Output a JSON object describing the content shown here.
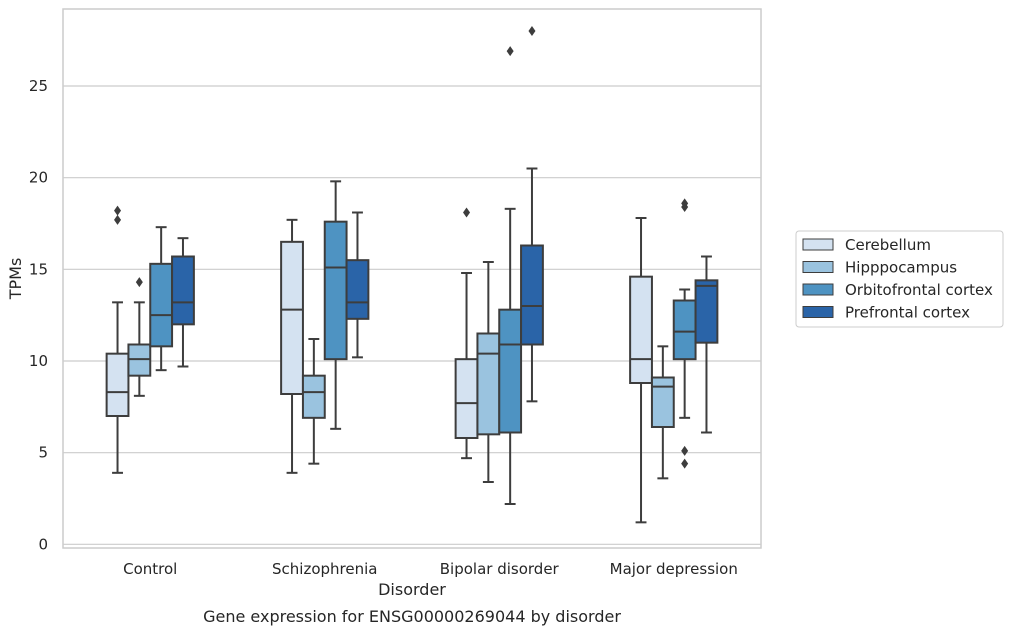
{
  "chart_data": {
    "type": "box",
    "title": "Gene expression for ENSG00000269044 by disorder",
    "xlabel": "Disorder",
    "ylabel": "TPMs",
    "ylim": [
      -0.2,
      29.2
    ],
    "yticks": [
      0,
      5,
      10,
      15,
      20,
      25
    ],
    "grid": "horizontal",
    "legend_placement": "right",
    "categories": [
      "Control",
      "Schizophrenia",
      "Bipolar disorder",
      "Major depression"
    ],
    "series": [
      {
        "name": "Cerebellum",
        "color": "#d4e2f1",
        "boxes": [
          {
            "whisker_low": 3.9,
            "q1": 7.0,
            "median": 8.3,
            "q3": 10.4,
            "whisker_high": 13.2,
            "outliers": [
              17.7,
              18.2
            ]
          },
          {
            "whisker_low": 3.9,
            "q1": 8.2,
            "median": 12.8,
            "q3": 16.5,
            "whisker_high": 17.7,
            "outliers": []
          },
          {
            "whisker_low": 4.7,
            "q1": 5.8,
            "median": 7.7,
            "q3": 10.1,
            "whisker_high": 14.8,
            "outliers": [
              18.1
            ]
          },
          {
            "whisker_low": 1.2,
            "q1": 8.8,
            "median": 10.1,
            "q3": 14.6,
            "whisker_high": 17.8,
            "outliers": []
          }
        ]
      },
      {
        "name": "Hipppocampus",
        "color": "#9ac3df",
        "boxes": [
          {
            "whisker_low": 8.1,
            "q1": 9.2,
            "median": 10.1,
            "q3": 10.9,
            "whisker_high": 13.2,
            "outliers": [
              14.3
            ]
          },
          {
            "whisker_low": 4.4,
            "q1": 6.9,
            "median": 8.3,
            "q3": 9.2,
            "whisker_high": 11.2,
            "outliers": []
          },
          {
            "whisker_low": 3.4,
            "q1": 6.0,
            "median": 10.4,
            "q3": 11.5,
            "whisker_high": 15.4,
            "outliers": []
          },
          {
            "whisker_low": 3.6,
            "q1": 6.4,
            "median": 8.6,
            "q3": 9.1,
            "whisker_high": 10.8,
            "outliers": []
          }
        ]
      },
      {
        "name": "Orbitofrontal cortex",
        "color": "#4e93c2",
        "boxes": [
          {
            "whisker_low": 9.5,
            "q1": 10.8,
            "median": 12.5,
            "q3": 15.3,
            "whisker_high": 17.3,
            "outliers": []
          },
          {
            "whisker_low": 6.3,
            "q1": 10.1,
            "median": 15.1,
            "q3": 17.6,
            "whisker_high": 19.8,
            "outliers": []
          },
          {
            "whisker_low": 2.2,
            "q1": 6.1,
            "median": 10.9,
            "q3": 12.8,
            "whisker_high": 18.3,
            "outliers": [
              26.9
            ]
          },
          {
            "whisker_low": 6.9,
            "q1": 10.1,
            "median": 11.6,
            "q3": 13.3,
            "whisker_high": 13.9,
            "outliers": [
              4.4,
              5.1,
              18.4,
              18.6
            ]
          }
        ]
      },
      {
        "name": "Prefrontal cortex",
        "color": "#2a64a8",
        "boxes": [
          {
            "whisker_low": 9.7,
            "q1": 12.0,
            "median": 13.2,
            "q3": 15.7,
            "whisker_high": 16.7,
            "outliers": []
          },
          {
            "whisker_low": 10.2,
            "q1": 12.3,
            "median": 13.2,
            "q3": 15.5,
            "whisker_high": 18.1,
            "outliers": []
          },
          {
            "whisker_low": 7.8,
            "q1": 10.9,
            "median": 13.0,
            "q3": 16.3,
            "whisker_high": 20.5,
            "outliers": [
              28.0
            ]
          },
          {
            "whisker_low": 6.1,
            "q1": 11.0,
            "median": 14.1,
            "q3": 14.4,
            "whisker_high": 15.7,
            "outliers": []
          }
        ]
      }
    ]
  }
}
